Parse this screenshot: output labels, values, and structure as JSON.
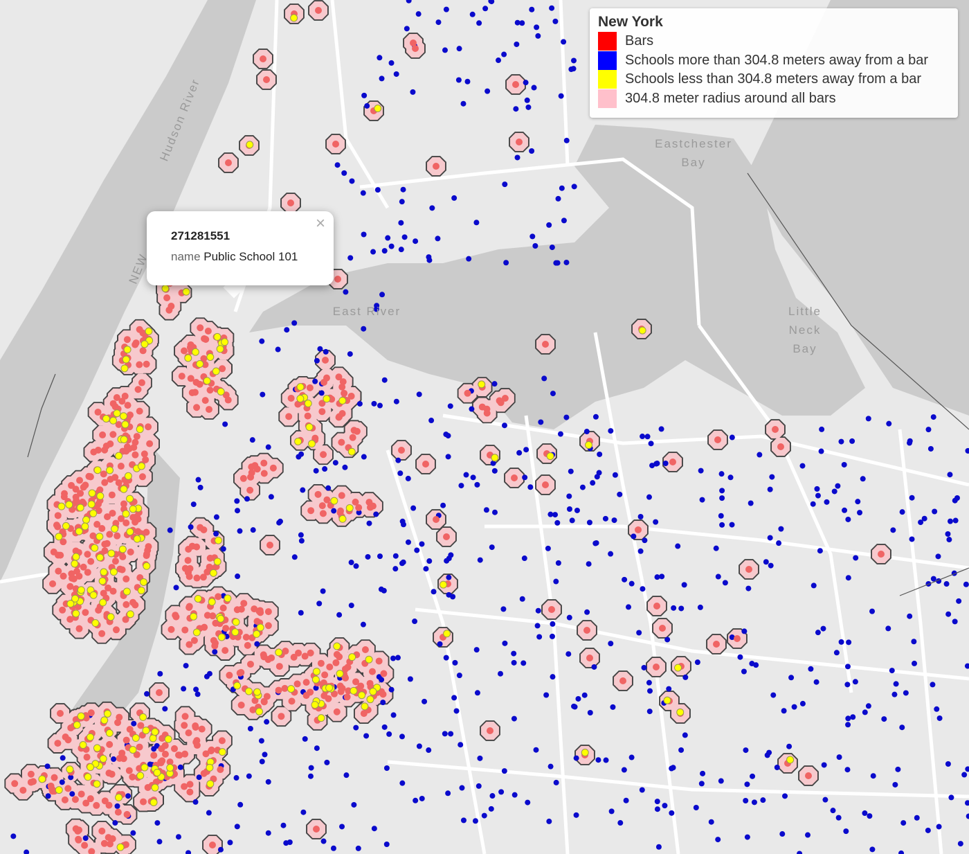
{
  "legend": {
    "title": "New York",
    "items": [
      {
        "label": "Bars",
        "color": "#ff0000"
      },
      {
        "label": "Schools more than 304.8 meters away from a bar",
        "color": "#0000ff"
      },
      {
        "label": "Schools less than 304.8 meters away from a bar",
        "color": "#ffff00"
      },
      {
        "label": "304.8 meter radius around all bars",
        "color": "#ffc0cb"
      }
    ]
  },
  "popup": {
    "id": "271281551",
    "field": "name",
    "value": "Public School 101",
    "close": "×"
  },
  "labels": [
    {
      "lines": [
        "Hudson River"
      ]
    },
    {
      "lines": [
        "NEW"
      ]
    },
    {
      "lines": [
        "East River"
      ]
    },
    {
      "lines": [
        "Eastchester",
        "Bay"
      ]
    },
    {
      "lines": [
        "Little",
        "Neck",
        "Bay"
      ]
    }
  ]
}
